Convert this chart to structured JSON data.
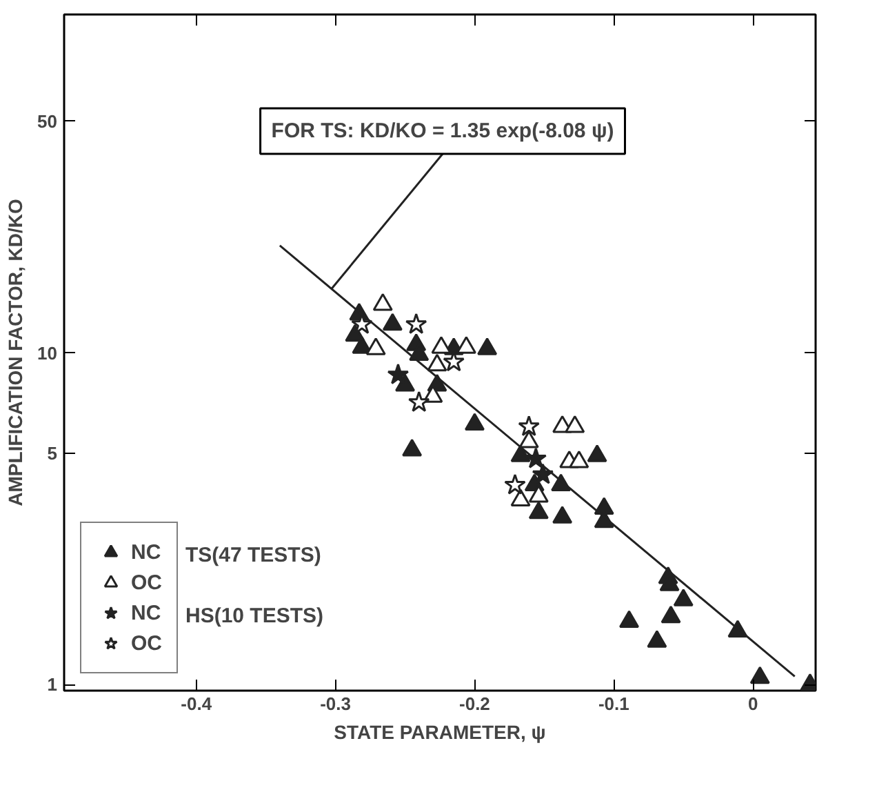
{
  "chart_data": {
    "type": "scatter",
    "xlabel": "STATE PARAMETER, ψ",
    "ylabel": "AMPLIFICATION FACTOR, KD/KO",
    "log": "y",
    "xlim": [
      -0.495,
      0.045
    ],
    "ylim": [
      0.96,
      105
    ],
    "xticks": [
      -0.4,
      -0.3,
      -0.2,
      -0.1,
      0
    ],
    "yticks": [
      1,
      5,
      10,
      50
    ],
    "grid": false,
    "legend": "bottom left",
    "series": [
      {
        "name": "NC",
        "marker": "triangle",
        "color": "#222222",
        "x": [
          -0.283,
          -0.286,
          -0.281,
          -0.259,
          -0.242,
          -0.24,
          -0.215,
          -0.191,
          -0.25,
          -0.227,
          -0.2,
          -0.245,
          -0.167,
          -0.112,
          -0.138,
          -0.157,
          -0.154,
          -0.137,
          -0.107,
          -0.107,
          -0.061,
          -0.06,
          -0.05,
          -0.089,
          -0.059,
          -0.069,
          -0.011,
          0.005,
          0.041
        ],
        "values": [
          13.1,
          11.3,
          10.4,
          12.2,
          10.6,
          9.9,
          10.3,
          10.3,
          8.0,
          8.0,
          6.1,
          5.1,
          4.9,
          4.9,
          4.0,
          4.0,
          3.3,
          3.2,
          3.4,
          3.1,
          2.1,
          2.0,
          1.8,
          1.55,
          1.6,
          1.35,
          1.45,
          1.05,
          1.0
        ]
      },
      {
        "name": "OC",
        "marker": "triangle",
        "color": "#ffffff",
        "x": [
          -0.266,
          -0.271,
          -0.224,
          -0.206,
          -0.227,
          -0.23,
          -0.161,
          -0.137,
          -0.128,
          -0.132,
          -0.125,
          -0.167,
          -0.154
        ],
        "values": [
          14.0,
          10.3,
          10.4,
          10.4,
          9.2,
          7.4,
          5.4,
          6.0,
          6.0,
          4.7,
          4.7,
          3.6,
          3.7
        ]
      },
      {
        "name": "NC",
        "marker": "star",
        "color": "#222222",
        "x": [
          -0.255,
          -0.156,
          -0.151
        ],
        "values": [
          8.6,
          4.8,
          4.3
        ]
      },
      {
        "name": "OC",
        "marker": "star",
        "color": "#ffffff",
        "x": [
          -0.281,
          -0.242,
          -0.215,
          -0.24,
          -0.161,
          -0.171
        ],
        "values": [
          12.2,
          12.2,
          9.4,
          7.1,
          6.0,
          4.0
        ]
      },
      {
        "type": "line",
        "color": "#222222",
        "x": [
          -0.34,
          0.03
        ],
        "values": [
          21.1,
          1.06
        ]
      }
    ],
    "annotations": [
      {
        "text": "FOR TS: KD/KO = 1.35 exp(-8.08 ψ)",
        "x": -0.303,
        "y": 15.6
      },
      "TS(47 TESTS)",
      "HS(10 TESTS)"
    ]
  }
}
